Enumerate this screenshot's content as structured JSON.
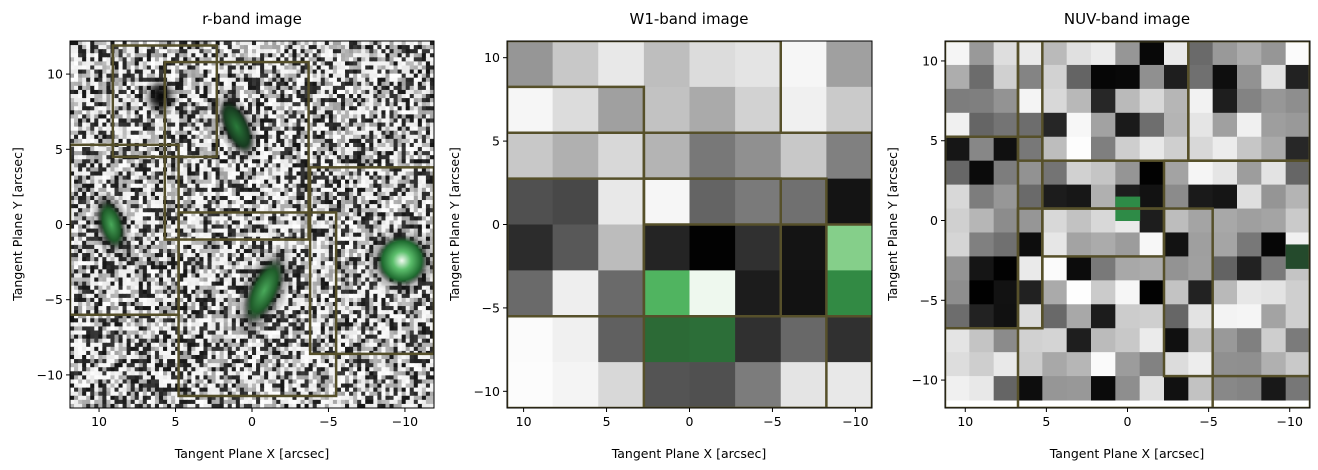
{
  "chart_data": [
    {
      "type": "heatmap",
      "title": "r-band image",
      "xlabel": "Tangent Plane X [arcsec]",
      "ylabel": "Tangent Plane Y [arcsec]",
      "xlim": [
        11.9,
        -11.9
      ],
      "ylim": [
        -12.2,
        12.2
      ],
      "xticks": [
        10,
        5,
        0,
        -5,
        -10
      ],
      "yticks": [
        10,
        5,
        0,
        -5,
        -10
      ],
      "xtick_labels": [
        "10",
        "5",
        "0",
        "−5",
        "−10"
      ],
      "ytick_labels": [
        "10",
        "5",
        "0",
        "−5",
        "−10"
      ],
      "grid": false,
      "colormap": "grayscale with green-highlighted sources",
      "sources": [
        {
          "x": 9.2,
          "y": 0,
          "peak": "green"
        },
        {
          "x": -0.8,
          "y": -4.4,
          "peak": "green"
        },
        {
          "x": 1.0,
          "y": 6.5,
          "peak": "dark green"
        },
        {
          "x": -9.8,
          "y": -2.4,
          "peak": "bright green"
        },
        {
          "x": 6.0,
          "y": 8.5,
          "peak": "dark"
        }
      ],
      "regions": [
        {
          "x0": 9.1,
          "x1": 2.3,
          "y0": 4.5,
          "y1": 11.9
        },
        {
          "x0": 5.7,
          "x1": -3.7,
          "y0": -1.0,
          "y1": 10.8
        },
        {
          "x0": 11.9,
          "x1": 4.8,
          "y0": -6.0,
          "y1": 5.3
        },
        {
          "x0": 4.8,
          "x1": -5.5,
          "y0": -11.4,
          "y1": 0.8
        },
        {
          "x0": -3.8,
          "x1": -11.9,
          "y0": -8.6,
          "y1": 3.8
        }
      ]
    },
    {
      "type": "heatmap",
      "title": "W1-band image",
      "xlabel": "Tangent Plane X [arcsec]",
      "ylabel": "Tangent Plane Y [arcsec]",
      "xlim": [
        11.0,
        -11.0
      ],
      "ylim": [
        -11.0,
        11.0
      ],
      "xticks": [
        10,
        5,
        0,
        -5,
        -10
      ],
      "yticks": [
        10,
        5,
        0,
        -5,
        -10
      ],
      "xtick_labels": [
        "10",
        "5",
        "0",
        "−5",
        "−10"
      ],
      "ytick_labels": [
        "10",
        "5",
        "0",
        "−5",
        "−10"
      ],
      "grid": false,
      "pixels": [
        [
          "#969696",
          "#c8c8c8",
          "#e8e8e8",
          "#bebebe",
          "#dcdcdc",
          "#e4e4e4",
          "#f6f6f6",
          "#a0a0a0"
        ],
        [
          "#f6f6f6",
          "#dcdcdc",
          "#a0a0a0",
          "#c2c2c2",
          "#aaaaaa",
          "#d2d2d2",
          "#f0f0f0",
          "#cacaca"
        ],
        [
          "#c8c8c8",
          "#b0b0b0",
          "#d8d8d8",
          "#b4b4b4",
          "#787878",
          "#909090",
          "#c8c8c8",
          "#808080"
        ],
        [
          "#505050",
          "#484848",
          "#e8e8e8",
          "#f6f6f6",
          "#646464",
          "#7a7a7a",
          "#707070",
          "#141414"
        ],
        [
          "#2c2c2c",
          "#585858",
          "#bcbcbc",
          "#242424",
          "#020202",
          "#303030",
          "#141414",
          "#85cf8a"
        ],
        [
          "#6a6a6a",
          "#eeeeee",
          "#6a6a6a",
          "#50b460",
          "#eef8ee",
          "#1c1c1c",
          "#121212",
          "#328a44"
        ],
        [
          "#fbfbfb",
          "#f0f0f0",
          "#606060",
          "#2c6a36",
          "#2c6e38",
          "#303030",
          "#686868",
          "#303030"
        ],
        [
          "#fcfcfc",
          "#f4f4f4",
          "#d8d8d8",
          "#545454",
          "#505050",
          "#7c7c7c",
          "#e4e4e4",
          "#e8e8e8"
        ]
      ],
      "regions": [
        {
          "x0": 11.0,
          "x1": -5.5,
          "y0": 5.5,
          "y1": 11.0
        },
        {
          "x0": 11.0,
          "x1": 2.75,
          "y0": -5.5,
          "y1": 8.25
        },
        {
          "x0": 2.75,
          "x1": -11.0,
          "y0": 0.0,
          "y1": 5.5
        },
        {
          "x0": 2.75,
          "x1": -5.5,
          "y0": -5.5,
          "y1": 2.75
        },
        {
          "x0": 11.0,
          "x1": -8.25,
          "y0": -11.0,
          "y1": 2.75
        },
        {
          "x0": 2.75,
          "x1": -11.0,
          "y0": -11.0,
          "y1": -5.5
        }
      ]
    },
    {
      "type": "heatmap",
      "title": "NUV-band image",
      "xlabel": "Tangent Plane X [arcsec]",
      "ylabel": "Tangent Plane Y [arcsec]",
      "xlim": [
        11.25,
        -11.25
      ],
      "ylim": [
        -11.75,
        11.25
      ],
      "xticks": [
        10,
        5,
        0,
        -5,
        -10
      ],
      "yticks": [
        10,
        5,
        0,
        -5,
        -10
      ],
      "xtick_labels": [
        "10",
        "5",
        "0",
        "−5",
        "−10"
      ],
      "ytick_labels": [
        "10",
        "5",
        "0",
        "−5",
        "−10"
      ],
      "grid": false,
      "seed": 7,
      "green_pixels": [
        {
          "x": 0.75,
          "y": 1.5,
          "color": "#2e8b47"
        },
        {
          "x": -9.75,
          "y": -1.5,
          "color": "#244a2c"
        },
        {
          "x": -11.25,
          "y": -3.0,
          "color": "#eef6ee"
        }
      ],
      "regions": [
        {
          "x0": 11.25,
          "x1": -11.25,
          "y0": -11.75,
          "y1": 11.25
        },
        {
          "x0": 6.75,
          "x1": -3.75,
          "y0": 3.75,
          "y1": 11.25
        },
        {
          "x0": 11.25,
          "x1": 5.25,
          "y0": -6.75,
          "y1": 5.25
        },
        {
          "x0": 6.75,
          "x1": 5.25,
          "y0": -6.75,
          "y1": 11.25
        },
        {
          "x0": 5.25,
          "x1": -2.25,
          "y0": -2.25,
          "y1": 0.75
        },
        {
          "x0": 6.75,
          "x1": -5.25,
          "y0": -11.75,
          "y1": 0.75
        },
        {
          "x0": -2.25,
          "x1": -11.25,
          "y0": -9.75,
          "y1": 3.75
        },
        {
          "x0": -3.75,
          "x1": -11.25,
          "y0": 3.75,
          "y1": 11.25
        }
      ]
    }
  ]
}
